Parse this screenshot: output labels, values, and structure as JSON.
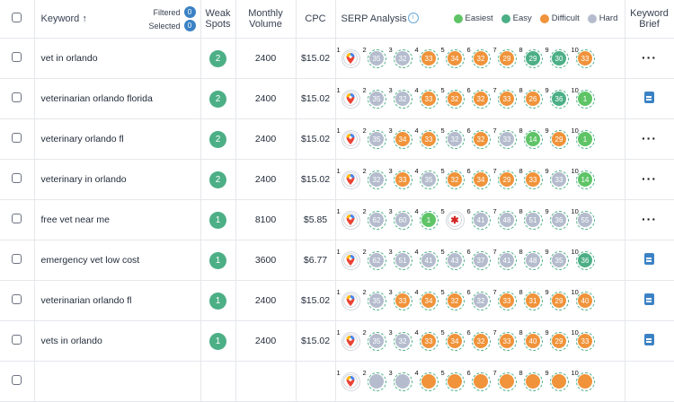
{
  "header": {
    "keyword_label": "Keyword ↑",
    "filtered_label": "Filtered",
    "filtered_count": "0",
    "selected_label": "Selected",
    "selected_count": "0",
    "weak_spots_line1": "Weak",
    "weak_spots_line2": "Spots",
    "volume_line1": "Monthly",
    "volume_line2": "Volume",
    "cpc_label": "CPC",
    "serp_label": "SERP Analysis",
    "brief_line1": "Keyword",
    "brief_line2": "Brief",
    "legend": [
      {
        "label": "Easiest",
        "color": "#5ec466"
      },
      {
        "label": "Easy",
        "color": "#4caf86"
      },
      {
        "label": "Difficult",
        "color": "#f0933a"
      },
      {
        "label": "Hard",
        "color": "#b4bccd"
      }
    ]
  },
  "rows": [
    {
      "keyword": "vet in orlando",
      "weak": "2",
      "volume": "2400",
      "cpc": "$15.02",
      "brief": "dots",
      "serp": [
        [
          "g",
          ""
        ],
        [
          "grey",
          "35"
        ],
        [
          "grey",
          "32"
        ],
        [
          "orange",
          "33"
        ],
        [
          "orange",
          "34"
        ],
        [
          "orange",
          "32"
        ],
        [
          "orange",
          "29"
        ],
        [
          "green",
          "29"
        ],
        [
          "green",
          "30"
        ],
        [
          "orange",
          "33"
        ]
      ]
    },
    {
      "keyword": "veterinarian orlando florida",
      "weak": "2",
      "volume": "2400",
      "cpc": "$15.02",
      "brief": "doc",
      "serp": [
        [
          "g",
          ""
        ],
        [
          "grey",
          "35"
        ],
        [
          "grey",
          "32"
        ],
        [
          "orange",
          "33"
        ],
        [
          "orange",
          "32"
        ],
        [
          "orange",
          "32"
        ],
        [
          "orange",
          "33"
        ],
        [
          "orange",
          "26"
        ],
        [
          "green",
          "36"
        ],
        [
          "lgreen",
          "1"
        ]
      ]
    },
    {
      "keyword": "veterinary orlando fl",
      "weak": "2",
      "volume": "2400",
      "cpc": "$15.02",
      "brief": "dots",
      "serp": [
        [
          "g",
          ""
        ],
        [
          "grey",
          "35"
        ],
        [
          "orange",
          "34"
        ],
        [
          "orange",
          "33"
        ],
        [
          "grey",
          "32"
        ],
        [
          "orange",
          "32"
        ],
        [
          "grey",
          "33"
        ],
        [
          "lgreen",
          "14"
        ],
        [
          "orange",
          "29"
        ],
        [
          "lgreen",
          "1"
        ]
      ]
    },
    {
      "keyword": "veterinary in orlando",
      "weak": "2",
      "volume": "2400",
      "cpc": "$15.02",
      "brief": "dots",
      "serp": [
        [
          "g",
          ""
        ],
        [
          "grey",
          "32"
        ],
        [
          "orange",
          "33"
        ],
        [
          "grey",
          "35"
        ],
        [
          "orange",
          "32"
        ],
        [
          "orange",
          "34"
        ],
        [
          "orange",
          "29"
        ],
        [
          "orange",
          "33"
        ],
        [
          "grey",
          "33"
        ],
        [
          "lgreen",
          "14"
        ]
      ]
    },
    {
      "keyword": "free vet near me",
      "weak": "1",
      "volume": "8100",
      "cpc": "$5.85",
      "brief": "dots",
      "serp": [
        [
          "g",
          ""
        ],
        [
          "grey",
          "62"
        ],
        [
          "grey",
          "60"
        ],
        [
          "lgreen",
          "1"
        ],
        [
          "yelp",
          ""
        ],
        [
          "grey",
          "41"
        ],
        [
          "grey",
          "48"
        ],
        [
          "grey",
          "51"
        ],
        [
          "grey",
          "36"
        ],
        [
          "grey",
          "55"
        ]
      ]
    },
    {
      "keyword": "emergency vet low cost",
      "weak": "1",
      "volume": "3600",
      "cpc": "$6.77",
      "brief": "doc",
      "serp": [
        [
          "g",
          ""
        ],
        [
          "grey",
          "62"
        ],
        [
          "grey",
          "51"
        ],
        [
          "grey",
          "41"
        ],
        [
          "grey",
          "43"
        ],
        [
          "grey",
          "37"
        ],
        [
          "grey",
          "41"
        ],
        [
          "grey",
          "48"
        ],
        [
          "grey",
          "35"
        ],
        [
          "green",
          "36"
        ]
      ]
    },
    {
      "keyword": "veterinarian orlando fl",
      "weak": "1",
      "volume": "2400",
      "cpc": "$15.02",
      "brief": "doc",
      "serp": [
        [
          "g",
          ""
        ],
        [
          "grey",
          "35"
        ],
        [
          "orange",
          "33"
        ],
        [
          "orange",
          "34"
        ],
        [
          "orange",
          "32"
        ],
        [
          "grey",
          "32"
        ],
        [
          "orange",
          "33"
        ],
        [
          "orange",
          "31"
        ],
        [
          "orange",
          "29"
        ],
        [
          "orange",
          "40"
        ]
      ]
    },
    {
      "keyword": "vets in orlando",
      "weak": "1",
      "volume": "2400",
      "cpc": "$15.02",
      "brief": "doc",
      "serp": [
        [
          "g",
          ""
        ],
        [
          "grey",
          "35"
        ],
        [
          "grey",
          "32"
        ],
        [
          "orange",
          "33"
        ],
        [
          "orange",
          "34"
        ],
        [
          "orange",
          "32"
        ],
        [
          "orange",
          "33"
        ],
        [
          "orange",
          "40"
        ],
        [
          "orange",
          "29"
        ],
        [
          "orange",
          "33"
        ]
      ]
    },
    {
      "keyword": "",
      "weak": "",
      "volume": "",
      "cpc": "",
      "brief": "",
      "serp": [
        [
          "g",
          ""
        ],
        [
          "grey",
          ""
        ],
        [
          "grey",
          ""
        ],
        [
          "orange",
          ""
        ],
        [
          "orange",
          ""
        ],
        [
          "orange",
          ""
        ],
        [
          "orange",
          ""
        ],
        [
          "orange",
          ""
        ],
        [
          "orange",
          ""
        ],
        [
          "orange",
          ""
        ]
      ]
    }
  ]
}
